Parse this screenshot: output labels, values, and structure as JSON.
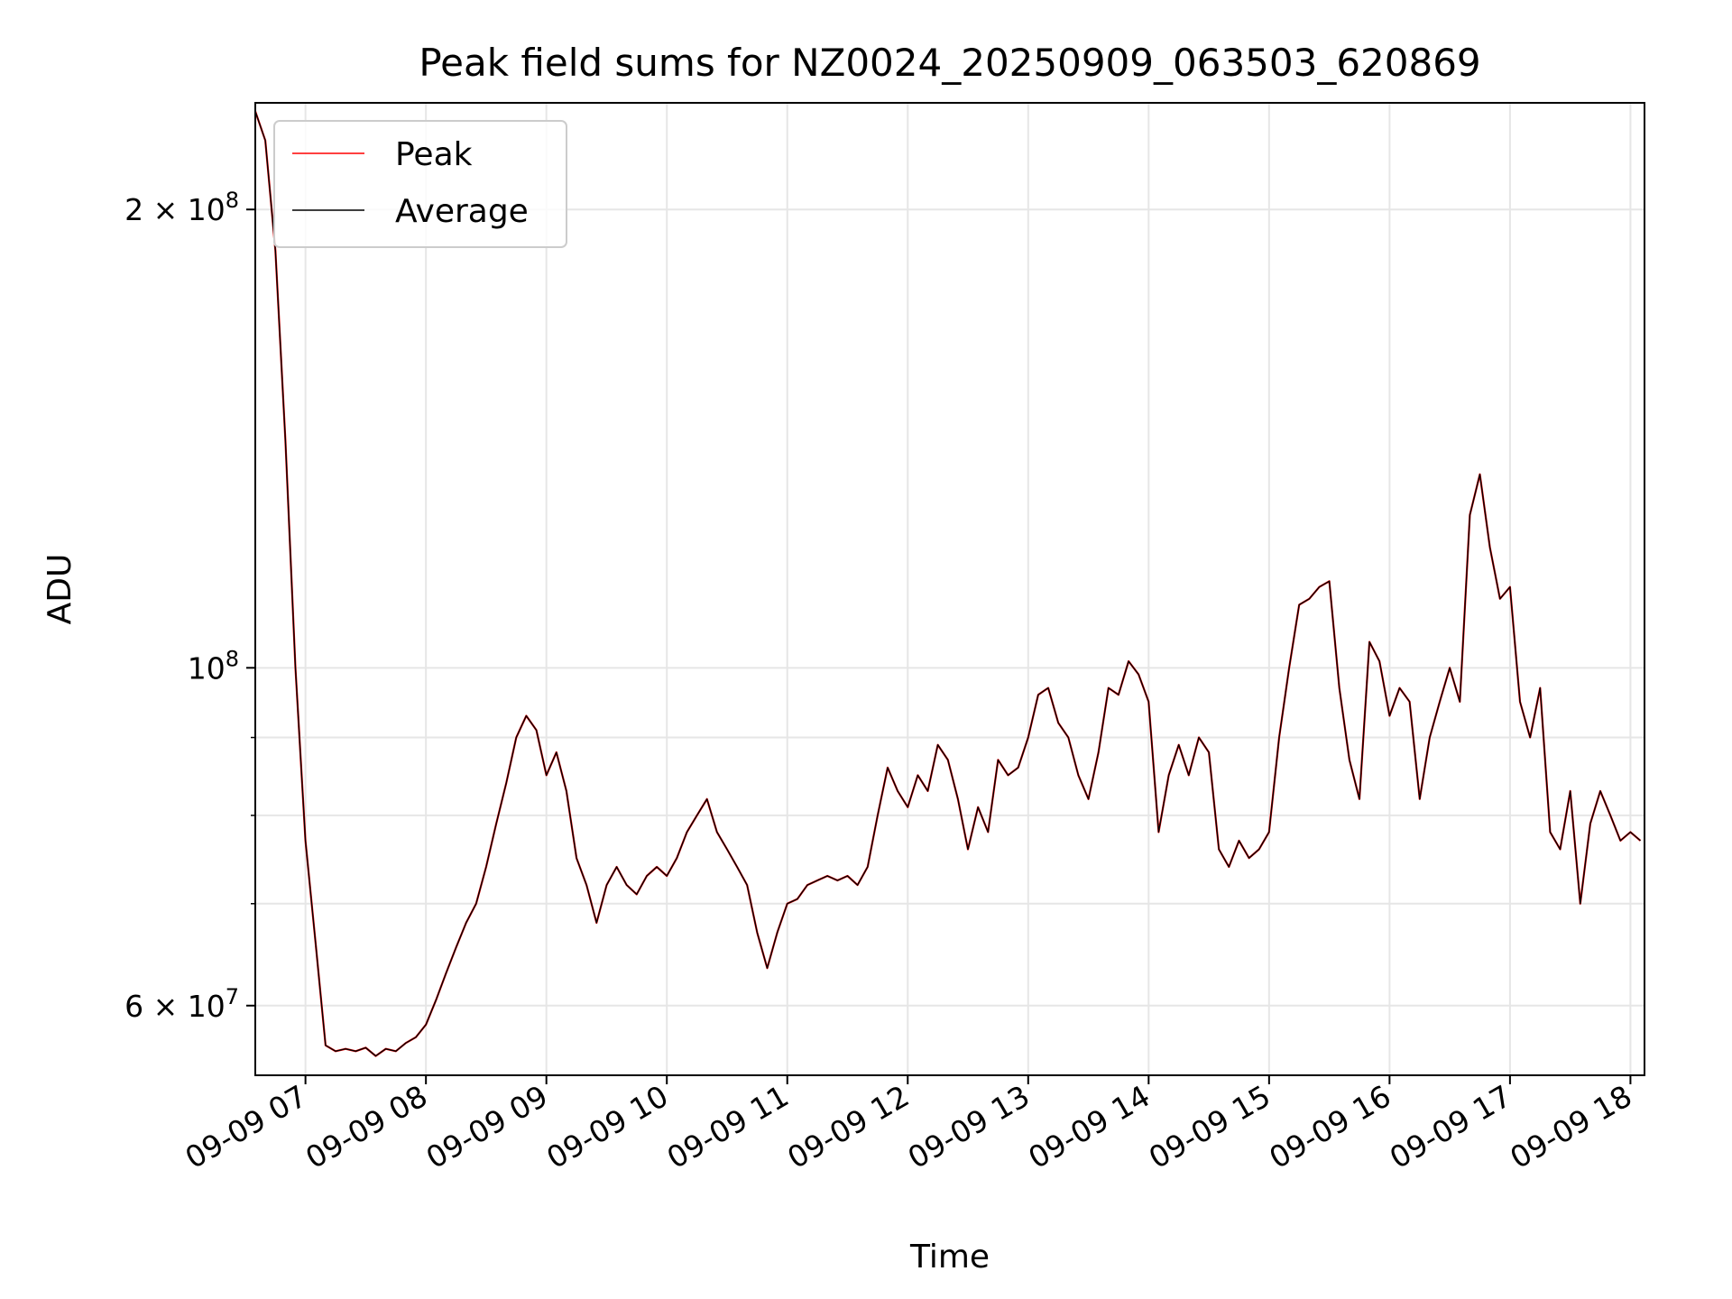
{
  "chart_data": {
    "type": "line",
    "title": "Peak field sums for NZ0024_20250909_063503_620869",
    "xlabel": "Time",
    "ylabel": "ADU",
    "yscale": "log",
    "grid": true,
    "legend_position": "upper-left",
    "xlim": [
      "2025-09-09 06:35",
      "2025-09-09 18:07"
    ],
    "ylim": [
      54000000,
      235000000
    ],
    "x_ticks": [
      {
        "value": "2025-09-09 07:00",
        "label": "09-09 07"
      },
      {
        "value": "2025-09-09 08:00",
        "label": "09-09 08"
      },
      {
        "value": "2025-09-09 09:00",
        "label": "09-09 09"
      },
      {
        "value": "2025-09-09 10:00",
        "label": "09-09 10"
      },
      {
        "value": "2025-09-09 11:00",
        "label": "09-09 11"
      },
      {
        "value": "2025-09-09 12:00",
        "label": "09-09 12"
      },
      {
        "value": "2025-09-09 13:00",
        "label": "09-09 13"
      },
      {
        "value": "2025-09-09 14:00",
        "label": "09-09 14"
      },
      {
        "value": "2025-09-09 15:00",
        "label": "09-09 15"
      },
      {
        "value": "2025-09-09 16:00",
        "label": "09-09 16"
      },
      {
        "value": "2025-09-09 17:00",
        "label": "09-09 17"
      },
      {
        "value": "2025-09-09 18:00",
        "label": "09-09 18"
      }
    ],
    "y_major_ticks": [
      {
        "value": 60000000,
        "mantissa": "6",
        "exp": "7"
      },
      {
        "value": 100000000,
        "mantissa": "",
        "exp": "8"
      },
      {
        "value": 200000000,
        "mantissa": "2",
        "exp": "8"
      }
    ],
    "y_minor_ticks": [
      70000000,
      80000000,
      90000000
    ],
    "series": [
      {
        "name": "Peak",
        "color": "#ff0000",
        "points": [
          [
            "2025-09-09 06:35",
            232000000
          ],
          [
            "2025-09-09 06:40",
            222000000
          ],
          [
            "2025-09-09 06:45",
            188000000
          ],
          [
            "2025-09-09 06:50",
            141000000
          ],
          [
            "2025-09-09 06:55",
            100000000
          ],
          [
            "2025-09-09 07:00",
            77000000
          ],
          [
            "2025-09-09 07:05",
            66000000
          ],
          [
            "2025-09-09 07:10",
            56500000
          ],
          [
            "2025-09-09 07:15",
            56000000
          ],
          [
            "2025-09-09 07:20",
            56200000
          ],
          [
            "2025-09-09 07:25",
            56000000
          ],
          [
            "2025-09-09 07:30",
            56300000
          ],
          [
            "2025-09-09 07:35",
            55600000
          ],
          [
            "2025-09-09 07:40",
            56200000
          ],
          [
            "2025-09-09 07:45",
            56000000
          ],
          [
            "2025-09-09 07:50",
            56700000
          ],
          [
            "2025-09-09 07:55",
            57200000
          ],
          [
            "2025-09-09 08:00",
            58300000
          ],
          [
            "2025-09-09 08:05",
            60500000
          ],
          [
            "2025-09-09 08:10",
            63000000
          ],
          [
            "2025-09-09 08:15",
            65500000
          ],
          [
            "2025-09-09 08:20",
            68000000
          ],
          [
            "2025-09-09 08:25",
            70000000
          ],
          [
            "2025-09-09 08:30",
            74000000
          ],
          [
            "2025-09-09 08:35",
            79000000
          ],
          [
            "2025-09-09 08:40",
            84000000
          ],
          [
            "2025-09-09 08:45",
            90000000
          ],
          [
            "2025-09-09 08:50",
            93000000
          ],
          [
            "2025-09-09 08:55",
            91000000
          ],
          [
            "2025-09-09 09:00",
            85000000
          ],
          [
            "2025-09-09 09:05",
            88000000
          ],
          [
            "2025-09-09 09:10",
            83000000
          ],
          [
            "2025-09-09 09:15",
            75000000
          ],
          [
            "2025-09-09 09:20",
            72000000
          ],
          [
            "2025-09-09 09:25",
            68000000
          ],
          [
            "2025-09-09 09:30",
            72000000
          ],
          [
            "2025-09-09 09:35",
            74000000
          ],
          [
            "2025-09-09 09:40",
            72000000
          ],
          [
            "2025-09-09 09:45",
            71000000
          ],
          [
            "2025-09-09 09:50",
            73000000
          ],
          [
            "2025-09-09 09:55",
            74000000
          ],
          [
            "2025-09-09 10:00",
            73000000
          ],
          [
            "2025-09-09 10:05",
            75000000
          ],
          [
            "2025-09-09 10:10",
            78000000
          ],
          [
            "2025-09-09 10:15",
            80000000
          ],
          [
            "2025-09-09 10:20",
            82000000
          ],
          [
            "2025-09-09 10:25",
            78000000
          ],
          [
            "2025-09-09 10:30",
            76000000
          ],
          [
            "2025-09-09 10:35",
            74000000
          ],
          [
            "2025-09-09 10:40",
            72000000
          ],
          [
            "2025-09-09 10:45",
            67000000
          ],
          [
            "2025-09-09 10:50",
            63500000
          ],
          [
            "2025-09-09 10:55",
            67000000
          ],
          [
            "2025-09-09 11:00",
            70000000
          ],
          [
            "2025-09-09 11:05",
            70500000
          ],
          [
            "2025-09-09 11:10",
            72000000
          ],
          [
            "2025-09-09 11:15",
            72500000
          ],
          [
            "2025-09-09 11:20",
            73000000
          ],
          [
            "2025-09-09 11:25",
            72500000
          ],
          [
            "2025-09-09 11:30",
            73000000
          ],
          [
            "2025-09-09 11:35",
            72000000
          ],
          [
            "2025-09-09 11:40",
            74000000
          ],
          [
            "2025-09-09 11:45",
            80000000
          ],
          [
            "2025-09-09 11:50",
            86000000
          ],
          [
            "2025-09-09 11:55",
            83000000
          ],
          [
            "2025-09-09 12:00",
            81000000
          ],
          [
            "2025-09-09 12:05",
            85000000
          ],
          [
            "2025-09-09 12:10",
            83000000
          ],
          [
            "2025-09-09 12:15",
            89000000
          ],
          [
            "2025-09-09 12:20",
            87000000
          ],
          [
            "2025-09-09 12:25",
            82000000
          ],
          [
            "2025-09-09 12:30",
            76000000
          ],
          [
            "2025-09-09 12:35",
            81000000
          ],
          [
            "2025-09-09 12:40",
            78000000
          ],
          [
            "2025-09-09 12:45",
            87000000
          ],
          [
            "2025-09-09 12:50",
            85000000
          ],
          [
            "2025-09-09 12:55",
            86000000
          ],
          [
            "2025-09-09 13:00",
            90000000
          ],
          [
            "2025-09-09 13:05",
            96000000
          ],
          [
            "2025-09-09 13:10",
            97000000
          ],
          [
            "2025-09-09 13:15",
            92000000
          ],
          [
            "2025-09-09 13:20",
            90000000
          ],
          [
            "2025-09-09 13:25",
            85000000
          ],
          [
            "2025-09-09 13:30",
            82000000
          ],
          [
            "2025-09-09 13:35",
            88000000
          ],
          [
            "2025-09-09 13:40",
            97000000
          ],
          [
            "2025-09-09 13:45",
            96000000
          ],
          [
            "2025-09-09 13:50",
            101000000
          ],
          [
            "2025-09-09 13:55",
            99000000
          ],
          [
            "2025-09-09 14:00",
            95000000
          ],
          [
            "2025-09-09 14:05",
            78000000
          ],
          [
            "2025-09-09 14:10",
            85000000
          ],
          [
            "2025-09-09 14:15",
            89000000
          ],
          [
            "2025-09-09 14:20",
            85000000
          ],
          [
            "2025-09-09 14:25",
            90000000
          ],
          [
            "2025-09-09 14:30",
            88000000
          ],
          [
            "2025-09-09 14:35",
            76000000
          ],
          [
            "2025-09-09 14:40",
            74000000
          ],
          [
            "2025-09-09 14:45",
            77000000
          ],
          [
            "2025-09-09 14:50",
            75000000
          ],
          [
            "2025-09-09 14:55",
            76000000
          ],
          [
            "2025-09-09 15:00",
            78000000
          ],
          [
            "2025-09-09 15:05",
            90000000
          ],
          [
            "2025-09-09 15:10",
            100000000
          ],
          [
            "2025-09-09 15:15",
            110000000
          ],
          [
            "2025-09-09 15:20",
            111000000
          ],
          [
            "2025-09-09 15:25",
            113000000
          ],
          [
            "2025-09-09 15:30",
            114000000
          ],
          [
            "2025-09-09 15:35",
            97000000
          ],
          [
            "2025-09-09 15:40",
            87000000
          ],
          [
            "2025-09-09 15:45",
            82000000
          ],
          [
            "2025-09-09 15:50",
            104000000
          ],
          [
            "2025-09-09 15:55",
            101000000
          ],
          [
            "2025-09-09 16:00",
            93000000
          ],
          [
            "2025-09-09 16:05",
            97000000
          ],
          [
            "2025-09-09 16:10",
            95000000
          ],
          [
            "2025-09-09 16:15",
            82000000
          ],
          [
            "2025-09-09 16:20",
            90000000
          ],
          [
            "2025-09-09 16:25",
            95000000
          ],
          [
            "2025-09-09 16:30",
            100000000
          ],
          [
            "2025-09-09 16:35",
            95000000
          ],
          [
            "2025-09-09 16:40",
            126000000
          ],
          [
            "2025-09-09 16:45",
            134000000
          ],
          [
            "2025-09-09 16:50",
            120000000
          ],
          [
            "2025-09-09 16:55",
            111000000
          ],
          [
            "2025-09-09 17:00",
            113000000
          ],
          [
            "2025-09-09 17:05",
            95000000
          ],
          [
            "2025-09-09 17:10",
            90000000
          ],
          [
            "2025-09-09 17:15",
            97000000
          ],
          [
            "2025-09-09 17:20",
            78000000
          ],
          [
            "2025-09-09 17:25",
            76000000
          ],
          [
            "2025-09-09 17:30",
            83000000
          ],
          [
            "2025-09-09 17:35",
            70000000
          ],
          [
            "2025-09-09 17:40",
            79000000
          ],
          [
            "2025-09-09 17:45",
            83000000
          ],
          [
            "2025-09-09 17:50",
            80000000
          ],
          [
            "2025-09-09 17:55",
            77000000
          ],
          [
            "2025-09-09 18:00",
            78000000
          ],
          [
            "2025-09-09 18:05",
            77000000
          ]
        ]
      },
      {
        "name": "Average",
        "color": "#000000",
        "points": []
      }
    ]
  }
}
